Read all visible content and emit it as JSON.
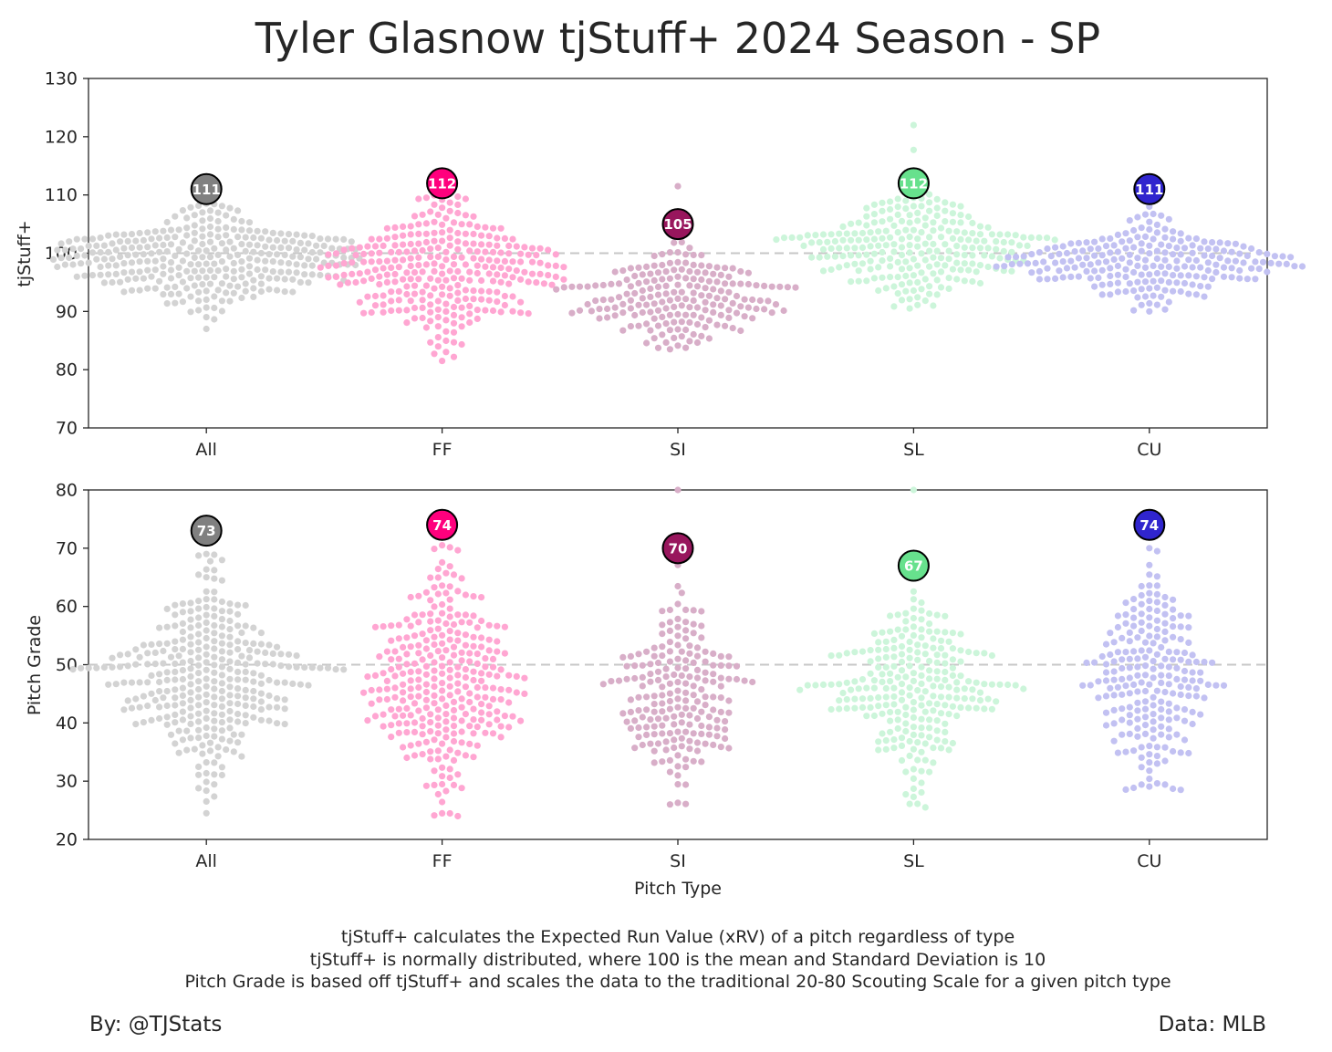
{
  "chart_data": [
    {
      "type": "scatter",
      "subtype": "swarm",
      "title": "Tyler Glasnow tjStuff+ 2024 Season - SP",
      "xlabel": "",
      "ylabel": "tjStuff+",
      "categories": [
        "All",
        "FF",
        "SI",
        "SL",
        "CU"
      ],
      "ylim": [
        70,
        130
      ],
      "yticks": [
        70,
        80,
        90,
        100,
        110,
        120,
        130
      ],
      "reference_line": 100,
      "grid": false,
      "series": [
        {
          "category": "All",
          "summary_value": 111,
          "point_color": "#d3d3d3",
          "badge_color": "#808080",
          "center": 99,
          "sd": 4,
          "min": 87,
          "max": 108.5,
          "count": 340
        },
        {
          "category": "FF",
          "summary_value": 112,
          "point_color": "#ffa6d2",
          "badge_color": "#ff007d",
          "center": 97,
          "sd": 5.8,
          "min": 81.5,
          "max": 110.5,
          "count": 300
        },
        {
          "category": "SI",
          "summary_value": 105,
          "point_color": "#d8aec8",
          "badge_color": "#98165d",
          "center": 92.5,
          "sd": 4,
          "min": 83.5,
          "max": 111.5,
          "count": 200
        },
        {
          "category": "SL",
          "summary_value": 112,
          "point_color": "#ccf5da",
          "badge_color": "#67e18d",
          "center": 101.5,
          "sd": 4.4,
          "min": 90.5,
          "max": 122,
          "count": 250
        },
        {
          "category": "CU",
          "summary_value": 111,
          "point_color": "#c2c1f2",
          "badge_color": "#3025ce",
          "center": 98.5,
          "sd": 3.6,
          "min": 90,
          "max": 108,
          "count": 230
        }
      ]
    },
    {
      "type": "scatter",
      "subtype": "swarm",
      "title": "",
      "xlabel": "Pitch Type",
      "ylabel": "Pitch Grade",
      "categories": [
        "All",
        "FF",
        "SI",
        "SL",
        "CU"
      ],
      "ylim": [
        20,
        80
      ],
      "yticks": [
        20,
        30,
        40,
        50,
        60,
        70,
        80
      ],
      "reference_line": 50,
      "grid": false,
      "series": [
        {
          "category": "All",
          "summary_value": 73,
          "point_color": "#d3d3d3",
          "badge_color": "#808080",
          "center": 47,
          "sd": 8,
          "min": 24.5,
          "max": 69,
          "count": 320
        },
        {
          "category": "FF",
          "summary_value": 74,
          "point_color": "#ffa6d2",
          "badge_color": "#ff007d",
          "center": 47,
          "sd": 9.5,
          "min": 24,
          "max": 70.5,
          "count": 300
        },
        {
          "category": "SI",
          "summary_value": 70,
          "point_color": "#d8aec8",
          "badge_color": "#98165d",
          "center": 45,
          "sd": 8.5,
          "min": 26,
          "max": 80,
          "count": 200
        },
        {
          "category": "SL",
          "summary_value": 67,
          "point_color": "#ccf5da",
          "badge_color": "#67e18d",
          "center": 46,
          "sd": 7.5,
          "min": 25.5,
          "max": 80,
          "count": 250
        },
        {
          "category": "CU",
          "summary_value": 74,
          "point_color": "#c2c1f2",
          "badge_color": "#3025ce",
          "center": 48,
          "sd": 8.5,
          "min": 28.5,
          "max": 70,
          "count": 220
        }
      ]
    }
  ],
  "footnotes": [
    "tjStuff+ calculates the Expected Run Value (xRV) of a pitch regardless of type",
    "tjStuff+ is normally distributed, where 100 is the mean and Standard Deviation is 10",
    "Pitch Grade is based off tjStuff+ and scales the data to the traditional 20-80 Scouting Scale for a given pitch type"
  ],
  "credits": {
    "left": "By: @TJStats",
    "right": "Data: MLB"
  }
}
